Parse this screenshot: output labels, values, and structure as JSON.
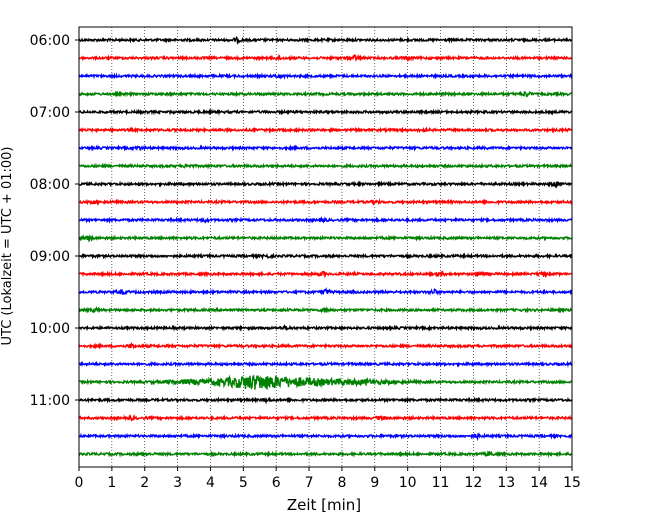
{
  "chart_data": {
    "type": "line",
    "subtype": "helicorder-seismogram",
    "title": "",
    "xlabel": "Zeit  [min]",
    "ylabel": "UTC (Lokalzeit = UTC + 01:00)",
    "xlim": [
      0,
      15
    ],
    "x_ticks": [
      "0",
      "1",
      "2",
      "3",
      "4",
      "5",
      "6",
      "7",
      "8",
      "9",
      "10",
      "11",
      "12",
      "13",
      "14",
      "15"
    ],
    "y_tick_labels": [
      "06:00",
      "07:00",
      "08:00",
      "09:00",
      "10:00",
      "11:00"
    ],
    "vertical_gridlines": true,
    "grid_style": "dotted",
    "trace_colors": [
      "#000000",
      "#ff0000",
      "#0000ff",
      "#008000"
    ],
    "traces": [
      {
        "start": "06:00",
        "color": "#000000",
        "events": [
          {
            "t": 4.8,
            "amp": 1.6
          }
        ]
      },
      {
        "start": "06:15",
        "color": "#ff0000",
        "events": [
          {
            "t": 6.1,
            "amp": 1.5
          },
          {
            "t": 8.4,
            "amp": 2.0
          },
          {
            "t": 10.0,
            "amp": 1.3
          }
        ]
      },
      {
        "start": "06:30",
        "color": "#0000ff",
        "events": [
          {
            "t": 6.1,
            "amp": 1.5
          }
        ]
      },
      {
        "start": "06:45",
        "color": "#008000",
        "events": [
          {
            "t": 13.6,
            "amp": 2.0
          }
        ]
      },
      {
        "start": "07:00",
        "color": "#000000",
        "events": []
      },
      {
        "start": "07:15",
        "color": "#ff0000",
        "events": [
          {
            "t": 10.5,
            "amp": 1.2
          }
        ]
      },
      {
        "start": "07:30",
        "color": "#0000ff",
        "events": [
          {
            "t": 1.8,
            "amp": 1.2
          }
        ]
      },
      {
        "start": "07:45",
        "color": "#008000",
        "events": [
          {
            "t": 3.3,
            "amp": 1.2
          }
        ]
      },
      {
        "start": "08:00",
        "color": "#000000",
        "events": [
          {
            "t": 14.5,
            "amp": 2.3
          }
        ]
      },
      {
        "start": "08:15",
        "color": "#ff0000",
        "events": [
          {
            "t": 0.5,
            "amp": 1.3
          },
          {
            "t": 9.0,
            "amp": 1.2
          }
        ]
      },
      {
        "start": "08:30",
        "color": "#0000ff",
        "events": [
          {
            "t": 3.8,
            "amp": 1.2
          },
          {
            "t": 7.4,
            "amp": 1.2
          }
        ]
      },
      {
        "start": "08:45",
        "color": "#008000",
        "events": [
          {
            "t": 0.3,
            "amp": 1.8
          }
        ]
      },
      {
        "start": "09:00",
        "color": "#000000",
        "events": [
          {
            "t": 5.7,
            "amp": 1.2
          }
        ]
      },
      {
        "start": "09:15",
        "color": "#ff0000",
        "events": [
          {
            "t": 7.4,
            "amp": 1.6
          },
          {
            "t": 11.0,
            "amp": 1.8
          },
          {
            "t": 12.2,
            "amp": 1.5
          },
          {
            "t": 14.1,
            "amp": 1.3
          }
        ]
      },
      {
        "start": "09:30",
        "color": "#0000ff",
        "events": [
          {
            "t": 1.3,
            "amp": 1.8
          },
          {
            "t": 7.5,
            "amp": 2.3
          },
          {
            "t": 10.8,
            "amp": 1.8
          }
        ]
      },
      {
        "start": "09:45",
        "color": "#008000",
        "events": [
          {
            "t": 0.5,
            "amp": 1.3
          },
          {
            "t": 7.5,
            "amp": 1.5
          }
        ]
      },
      {
        "start": "10:00",
        "color": "#000000",
        "events": [
          {
            "t": 6.3,
            "amp": 1.2
          }
        ]
      },
      {
        "start": "10:15",
        "color": "#ff0000",
        "events": [
          {
            "t": 1.6,
            "amp": 1.5
          }
        ]
      },
      {
        "start": "10:30",
        "color": "#0000ff",
        "events": []
      },
      {
        "start": "10:45",
        "color": "#008000",
        "events": [
          {
            "t": 4.8,
            "amp": 3.0,
            "width": 0.9
          },
          {
            "t": 5.5,
            "amp": 4.5,
            "width": 0.7
          },
          {
            "t": 6.6,
            "amp": 3.2,
            "width": 0.9
          },
          {
            "t": 8.3,
            "amp": 2.0,
            "width": 1.2
          },
          {
            "t": 3.3,
            "amp": 1.5,
            "width": 0.8
          }
        ]
      },
      {
        "start": "11:00",
        "color": "#000000",
        "events": [
          {
            "t": 5.7,
            "amp": 1.3
          }
        ]
      },
      {
        "start": "11:15",
        "color": "#ff0000",
        "events": [
          {
            "t": 9.2,
            "amp": 1.6
          },
          {
            "t": 1.6,
            "amp": 1.2
          }
        ]
      },
      {
        "start": "11:30",
        "color": "#0000ff",
        "events": [
          {
            "t": 12.1,
            "amp": 1.6
          }
        ]
      },
      {
        "start": "11:45",
        "color": "#008000",
        "events": [
          {
            "t": 12.5,
            "amp": 1.5
          },
          {
            "t": 2.0,
            "amp": 1.2
          }
        ]
      }
    ]
  }
}
